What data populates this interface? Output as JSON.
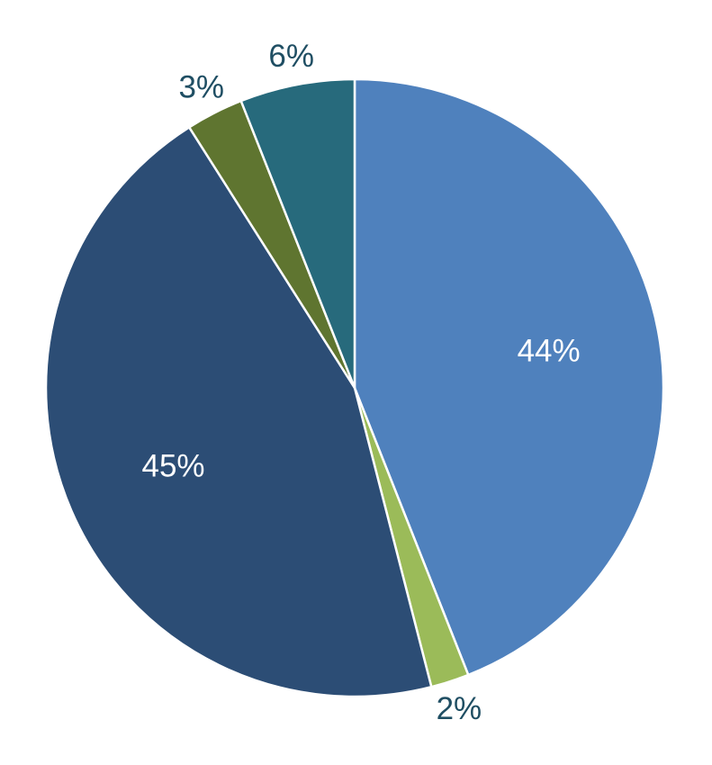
{
  "chart_data": {
    "type": "pie",
    "title": "",
    "start": "12 o'clock",
    "direction": "clockwise",
    "slices": [
      {
        "label": "44%",
        "value": 44,
        "color": "#4f81bd",
        "label_color": "#ffffff",
        "label_placement": "inside"
      },
      {
        "label": "2%",
        "value": 2,
        "color": "#9bbb59",
        "label_color": "#1f4e63",
        "label_placement": "outside"
      },
      {
        "label": "45%",
        "value": 45,
        "color": "#2c4d75",
        "label_color": "#ffffff",
        "label_placement": "inside"
      },
      {
        "label": "3%",
        "value": 3,
        "color": "#5f7530",
        "label_color": "#1f4e63",
        "label_placement": "outside"
      },
      {
        "label": "6%",
        "value": 6,
        "color": "#276a7c",
        "label_color": "#1f4e63",
        "label_placement": "outside"
      }
    ]
  }
}
